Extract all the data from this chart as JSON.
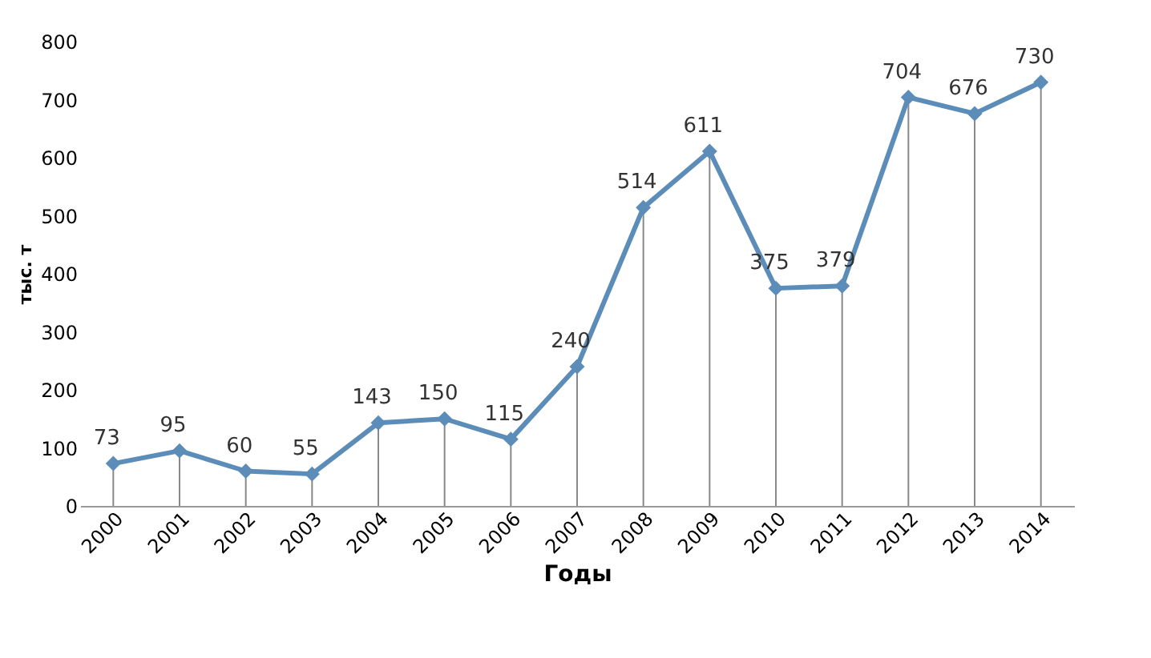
{
  "chart_data": {
    "type": "line",
    "xlabel": "Годы",
    "ylabel": "тыс. т",
    "categories": [
      "2000",
      "2001",
      "2002",
      "2003",
      "2004",
      "2005",
      "2006",
      "2007",
      "2008",
      "2009",
      "2010",
      "2011",
      "2012",
      "2013",
      "2014"
    ],
    "series": [
      {
        "color": "#5b8db8",
        "values": [
          73,
          95,
          60,
          55,
          143,
          150,
          115,
          240,
          514,
          611,
          375,
          379,
          704,
          676,
          730
        ]
      }
    ],
    "ylim": [
      0,
      800
    ],
    "yticks": [
      0,
      100,
      200,
      300,
      400,
      500,
      600,
      700,
      800
    ],
    "data_labels": true,
    "marker": "diamond",
    "line_style": "solid",
    "legend": false,
    "grid": false
  }
}
